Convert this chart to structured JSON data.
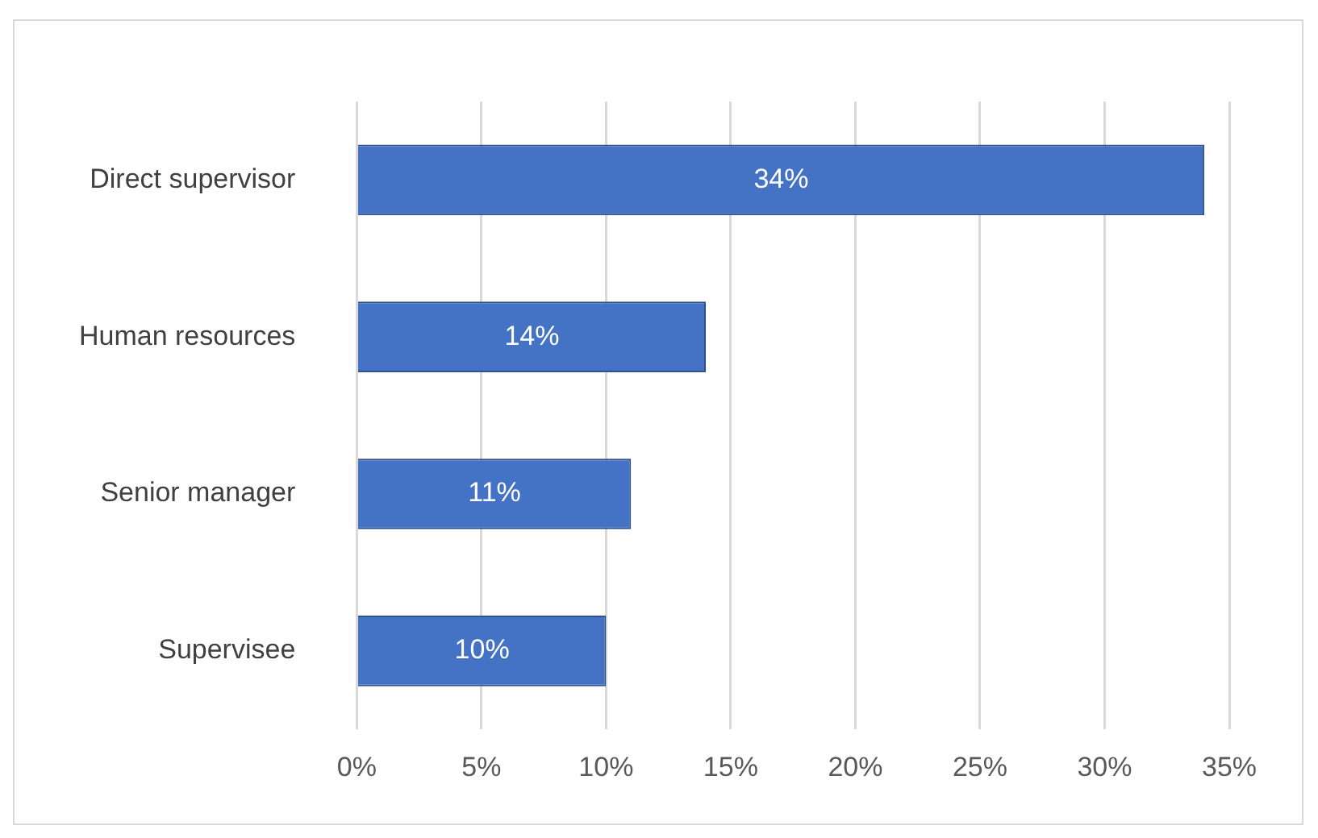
{
  "chart_data": {
    "type": "bar",
    "orientation": "horizontal",
    "categories": [
      "Direct supervisor",
      "Human resources",
      "Senior manager",
      "Supervisee"
    ],
    "values": [
      34,
      14,
      11,
      10
    ],
    "value_labels": [
      "34%",
      "14%",
      "11%",
      "10%"
    ],
    "color": "#4472c4",
    "xlim": [
      0,
      35
    ],
    "xticks": [
      {
        "value": 0,
        "label": "0%"
      },
      {
        "value": 5,
        "label": "5%"
      },
      {
        "value": 10,
        "label": "10%"
      },
      {
        "value": 15,
        "label": "15%"
      },
      {
        "value": 20,
        "label": "20%"
      },
      {
        "value": 25,
        "label": "25%"
      },
      {
        "value": 30,
        "label": "30%"
      },
      {
        "value": 35,
        "label": "35%"
      }
    ],
    "grid": "x",
    "legend": false
  }
}
